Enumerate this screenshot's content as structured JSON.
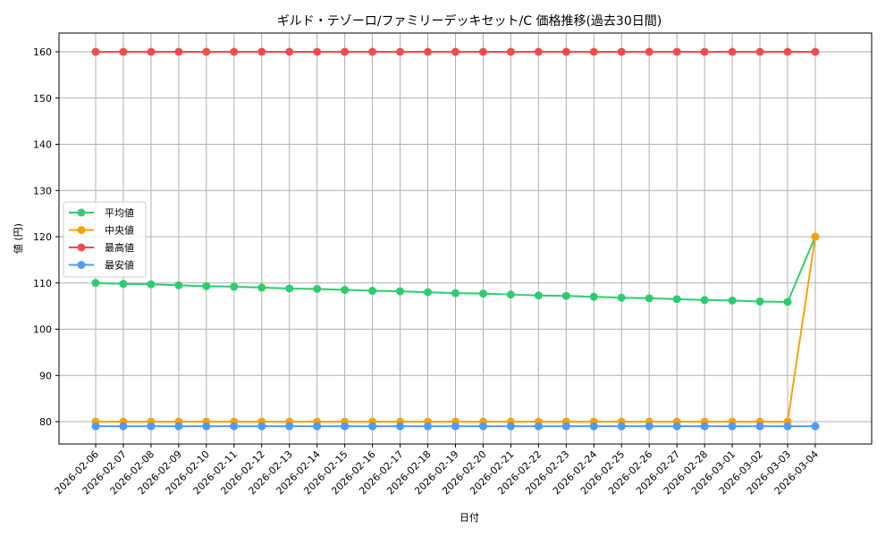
{
  "chart_data": {
    "type": "line",
    "title": "ギルド・テゾーロ/ファミリーデッキセット/C 価格推移(過去30日間)",
    "xlabel": "日付",
    "ylabel": "値 (円)",
    "ylim": [
      75,
      164
    ],
    "yticks": [
      80,
      90,
      100,
      110,
      120,
      130,
      140,
      150,
      160
    ],
    "grid": true,
    "legend_position": "center left",
    "categories": [
      "2026-02-06",
      "2026-02-07",
      "2026-02-08",
      "2026-02-09",
      "2026-02-10",
      "2026-02-11",
      "2026-02-12",
      "2026-02-13",
      "2026-02-14",
      "2026-02-15",
      "2026-02-16",
      "2026-02-17",
      "2026-02-18",
      "2026-02-19",
      "2026-02-20",
      "2026-02-21",
      "2026-02-22",
      "2026-02-23",
      "2026-02-24",
      "2026-02-25",
      "2026-02-26",
      "2026-02-27",
      "2026-02-28",
      "2026-03-01",
      "2026-03-02",
      "2026-03-03",
      "2026-03-04"
    ],
    "series": [
      {
        "name": "平均値",
        "color": "#2ecc71",
        "values": [
          110.0,
          109.8,
          109.7,
          109.5,
          109.3,
          109.2,
          109.0,
          108.8,
          108.7,
          108.5,
          108.3,
          108.2,
          108.0,
          107.8,
          107.7,
          107.5,
          107.3,
          107.2,
          107.0,
          106.8,
          106.7,
          106.5,
          106.3,
          106.2,
          106.0,
          105.9,
          120.0
        ]
      },
      {
        "name": "中央値",
        "color": "#f5a10c",
        "values": [
          80,
          80,
          80,
          80,
          80,
          80,
          80,
          80,
          80,
          80,
          80,
          80,
          80,
          80,
          80,
          80,
          80,
          80,
          80,
          80,
          80,
          80,
          80,
          80,
          80,
          80,
          120
        ]
      },
      {
        "name": "最高値",
        "color": "#f24b4b",
        "values": [
          160,
          160,
          160,
          160,
          160,
          160,
          160,
          160,
          160,
          160,
          160,
          160,
          160,
          160,
          160,
          160,
          160,
          160,
          160,
          160,
          160,
          160,
          160,
          160,
          160,
          160,
          160
        ]
      },
      {
        "name": "最安値",
        "color": "#4d9bf5",
        "values": [
          79,
          79,
          79,
          79,
          79,
          79,
          79,
          79,
          79,
          79,
          79,
          79,
          79,
          79,
          79,
          79,
          79,
          79,
          79,
          79,
          79,
          79,
          79,
          79,
          79,
          79,
          79
        ]
      }
    ]
  }
}
